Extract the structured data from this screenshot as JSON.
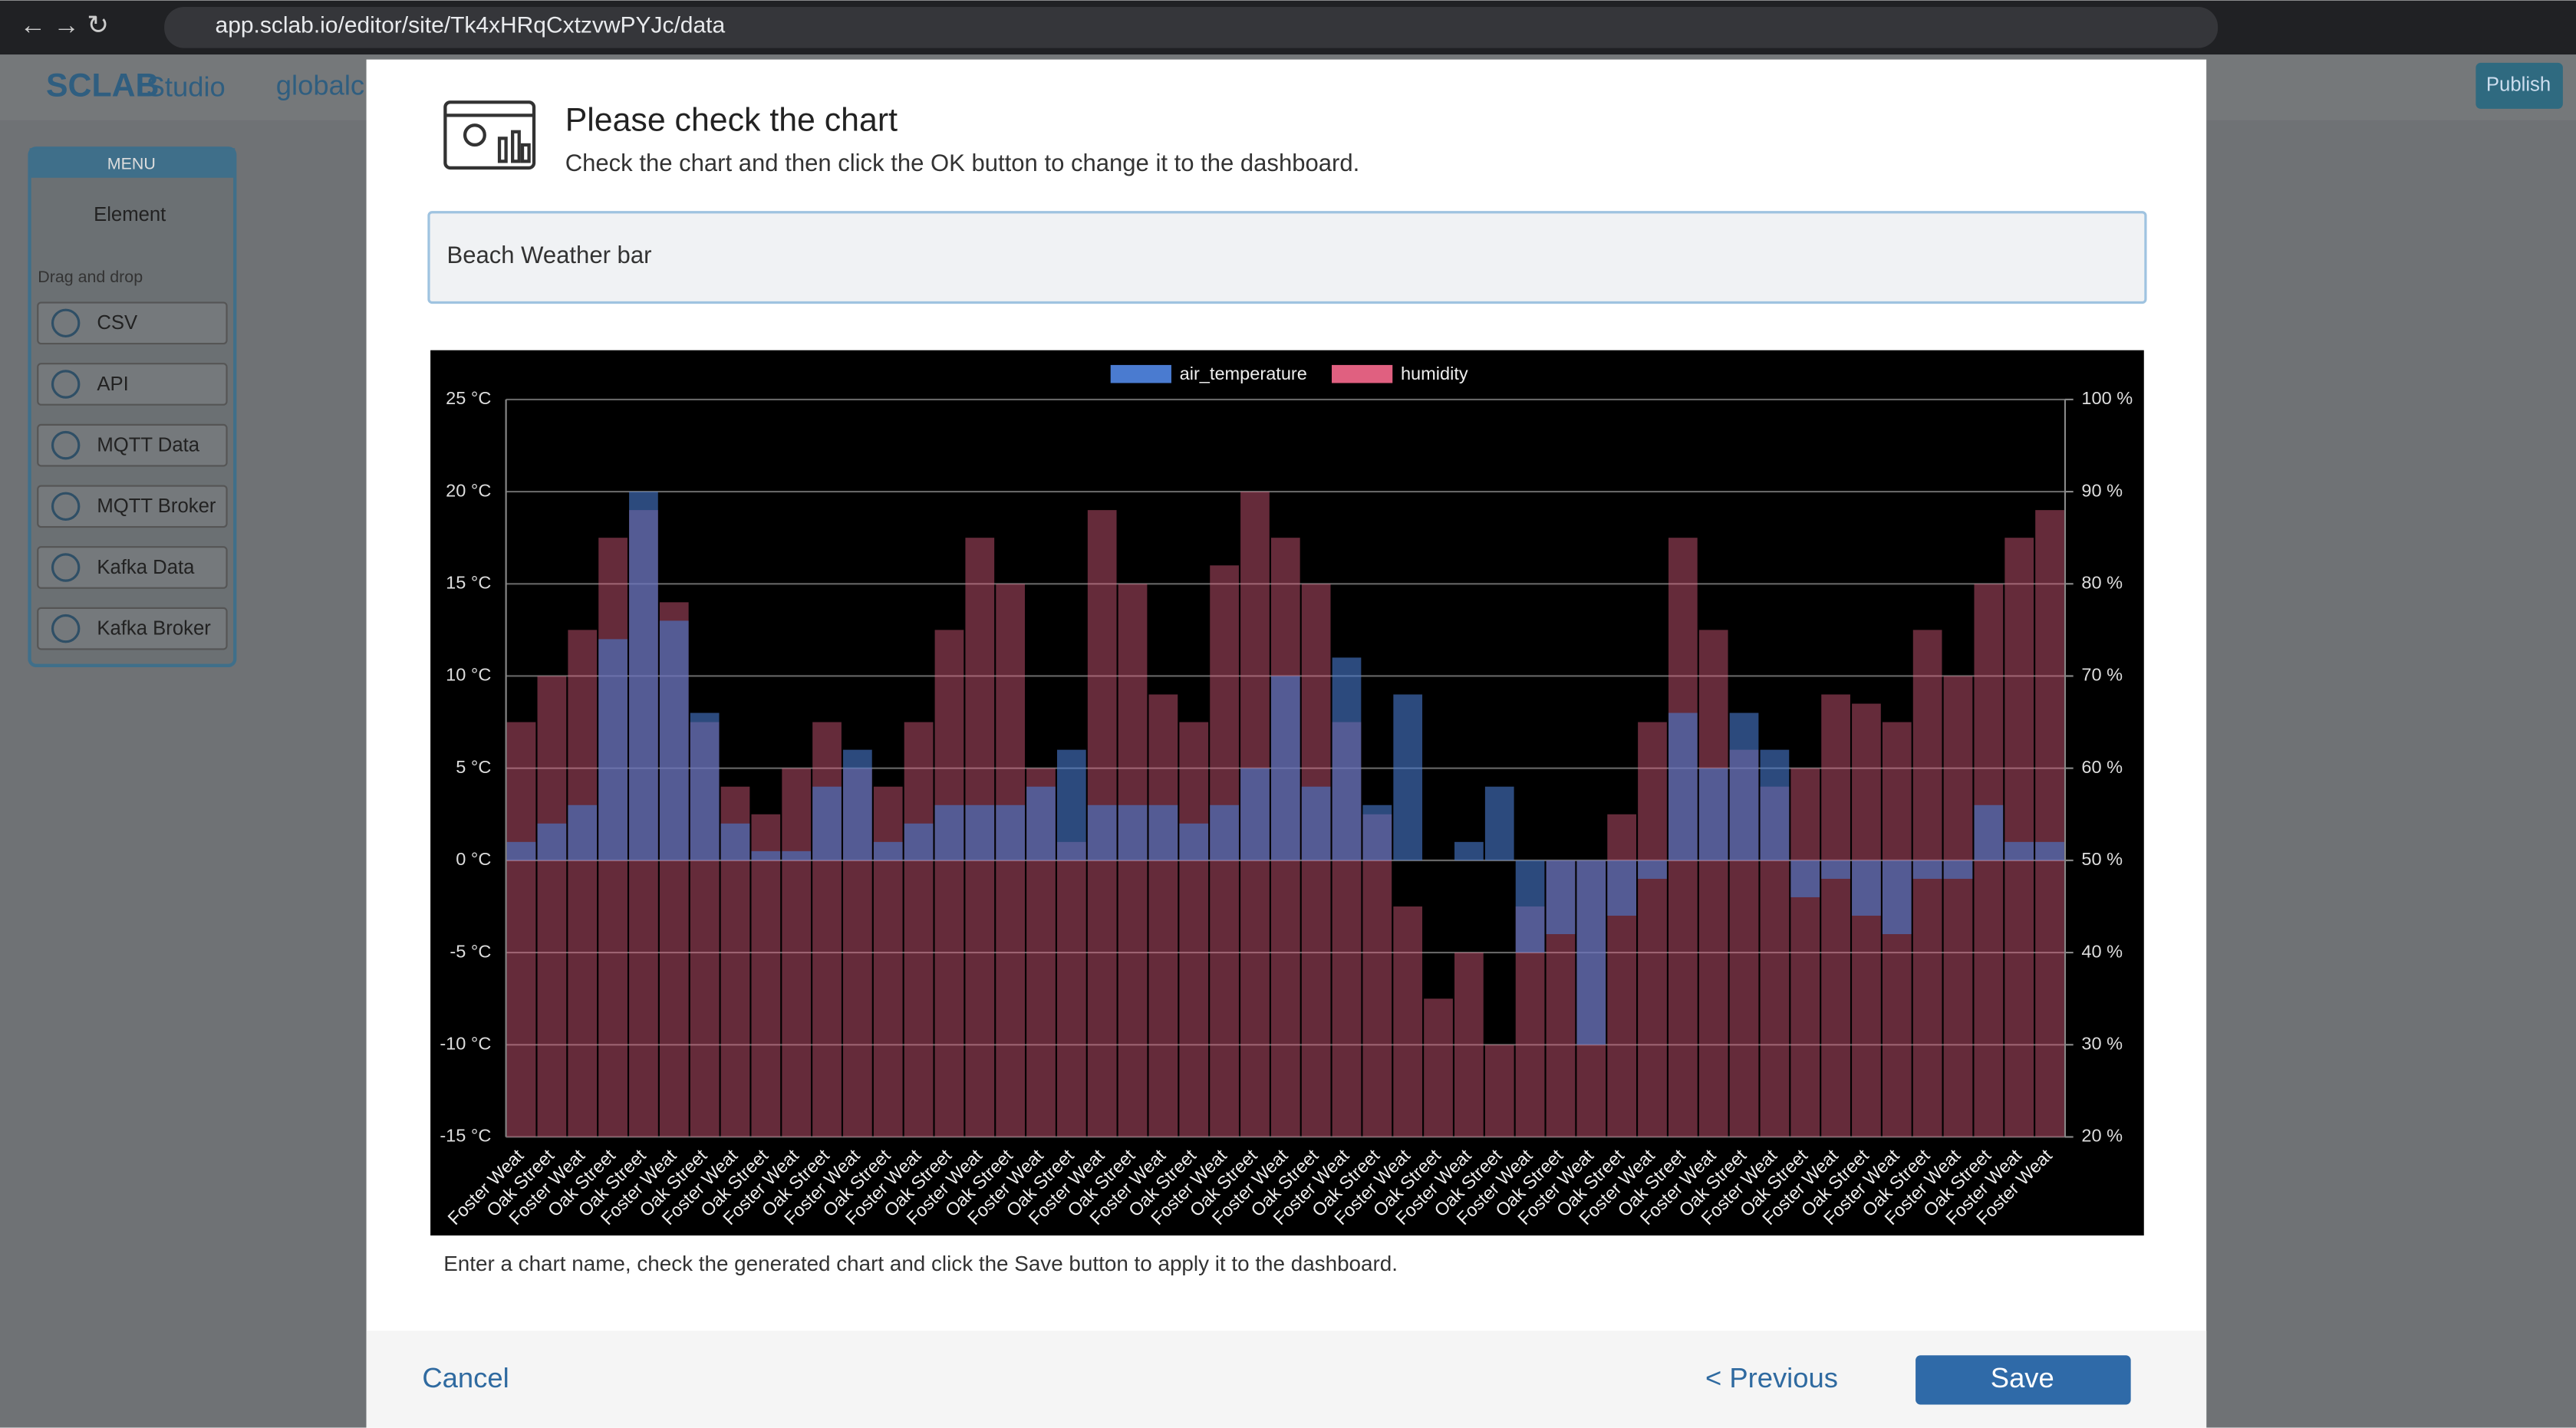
{
  "browser": {
    "url": "app.sclab.io/editor/site/Tk4xHRqCxtzvwPYJc/data"
  },
  "app": {
    "logo": "SCLAB",
    "product": "Studio",
    "site": "globalc",
    "publish": "Publish"
  },
  "menu": {
    "title": "MENU",
    "element": "Element",
    "section": "Drag and drop",
    "items": [
      "CSV",
      "API",
      "MQTT Data",
      "MQTT Broker",
      "Kafka Data",
      "Kafka Broker"
    ]
  },
  "dialog": {
    "title": "Please check the chart",
    "subtitle": "Check the chart and then click the OK button to change it to the dashboard.",
    "chart_name": "Beach Weather bar",
    "note": "Enter a chart name, check the generated chart and click the Save button to apply it to the dashboard.",
    "cancel": "Cancel",
    "previous": "< Previous",
    "save": "Save"
  },
  "chart_data": {
    "type": "bar",
    "categories": [
      "Foster Weat",
      "Oak Street",
      "Foster Weat",
      "Oak Street",
      "Oak Street",
      "Foster Weat",
      "Oak Street",
      "Foster Weat",
      "Oak Street",
      "Foster Weat",
      "Oak Street",
      "Foster Weat",
      "Oak Street",
      "Foster Weat",
      "Oak Street",
      "Foster Weat",
      "Oak Street",
      "Foster Weat",
      "Oak Street",
      "Foster Weat",
      "Oak Street",
      "Foster Weat",
      "Oak Street",
      "Foster Weat",
      "Oak Street",
      "Foster Weat",
      "Oak Street",
      "Foster Weat",
      "Oak Street",
      "Foster Weat",
      "Oak Street",
      "Foster Weat",
      "Oak Street",
      "Foster Weat",
      "Oak Street",
      "Foster Weat",
      "Oak Street",
      "Foster Weat",
      "Oak Street",
      "Foster Weat",
      "Oak Street",
      "Foster Weat",
      "Oak Street",
      "Foster Weat",
      "Oak Street",
      "Foster Weat",
      "Oak Street",
      "Foster Weat",
      "Oak Street",
      "Foster Weat",
      "Foster Weat"
    ],
    "series": [
      {
        "name": "air_temperature",
        "color": "#4a7bd0",
        "values": [
          1,
          2,
          3,
          12,
          20,
          13,
          8,
          2,
          0.5,
          0.5,
          4,
          6,
          1,
          2,
          3,
          3,
          3,
          4,
          6,
          3,
          3,
          3,
          2,
          3,
          5,
          10,
          4,
          11,
          3,
          9,
          0,
          1,
          4,
          -5,
          -4,
          -10,
          -3,
          -1,
          8,
          5,
          8,
          6,
          -2,
          -1,
          -3,
          -4,
          -1,
          -1,
          3,
          1,
          1
        ]
      },
      {
        "name": "humidity",
        "color": "#e06080",
        "axis": "y2",
        "values": [
          65,
          70,
          75,
          85,
          88,
          78,
          65,
          58,
          55,
          60,
          65,
          60,
          58,
          65,
          75,
          85,
          80,
          60,
          52,
          88,
          80,
          68,
          65,
          82,
          90,
          85,
          80,
          65,
          55,
          45,
          35,
          40,
          30,
          45,
          50,
          50,
          55,
          65,
          85,
          75,
          62,
          58,
          60,
          68,
          67,
          65,
          75,
          70,
          80,
          85,
          88
        ]
      }
    ],
    "ylim": [
      -15,
      25
    ],
    "yticks": [
      {
        "value": -15,
        "label": "-15 °C"
      },
      {
        "value": -10,
        "label": "-10 °C"
      },
      {
        "value": -5,
        "label": "-5 °C"
      },
      {
        "value": 0,
        "label": "0 °C"
      },
      {
        "value": 5,
        "label": "5 °C"
      },
      {
        "value": 10,
        "label": "10 °C"
      },
      {
        "value": 15,
        "label": "15 °C"
      },
      {
        "value": 20,
        "label": "20 °C"
      },
      {
        "value": 25,
        "label": "25 °C"
      }
    ],
    "y2lim": [
      20,
      100
    ],
    "y2ticks": [
      {
        "value": 20,
        "label": "20 %"
      },
      {
        "value": 30,
        "label": "30 %"
      },
      {
        "value": 40,
        "label": "40 %"
      },
      {
        "value": 50,
        "label": "50 %"
      },
      {
        "value": 60,
        "label": "60 %"
      },
      {
        "value": 70,
        "label": "70 %"
      },
      {
        "value": 80,
        "label": "80 %"
      },
      {
        "value": 90,
        "label": "90 %"
      },
      {
        "value": 100,
        "label": "100 %"
      }
    ],
    "grid": true,
    "legend": "top"
  }
}
